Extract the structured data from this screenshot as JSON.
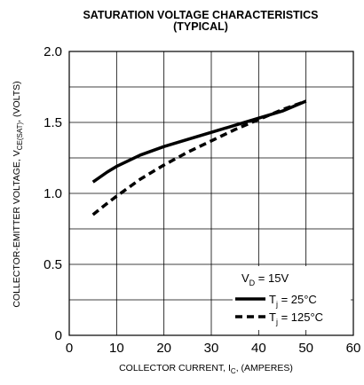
{
  "chart_data": {
    "type": "line",
    "title_line1": "SATURATION VOLTAGE CHARACTERISTICS",
    "title_line2": "(TYPICAL)",
    "xlabel": {
      "main": "COLLECTOR CURRENT, I",
      "sub": "C",
      "suffix": ", (AMPERES)"
    },
    "ylabel": {
      "main": "COLLECTOR-EMITTER VOLTAGE, V",
      "sub": "CE(SAT)",
      "suffix": ", (VOLTS)"
    },
    "xlim": [
      0,
      60
    ],
    "ylim": [
      0,
      2.0
    ],
    "x_ticks": [
      0,
      10,
      20,
      30,
      40,
      50,
      60
    ],
    "x_tick_labels": [
      "0",
      "10",
      "20",
      "30",
      "40",
      "50",
      "60"
    ],
    "y_ticks": [
      0,
      0.5,
      1.0,
      1.5,
      2.0
    ],
    "y_tick_labels": [
      "0",
      "0.5",
      "1.0",
      "1.5",
      "2.0"
    ],
    "grid": true,
    "grid_x_step": 10,
    "grid_y_step": 0.25,
    "legend_position": "bottom-right",
    "legend_header": {
      "main": "V",
      "sub": "D",
      "suffix": " = 15V"
    },
    "series": [
      {
        "name_main": "T",
        "name_sub": "j",
        "name_suffix": " = 25°C",
        "style": "solid",
        "color": "#000000",
        "x": [
          5,
          8,
          10,
          15,
          20,
          25,
          30,
          35,
          40,
          45,
          50
        ],
        "y": [
          1.08,
          1.15,
          1.19,
          1.27,
          1.33,
          1.38,
          1.43,
          1.48,
          1.53,
          1.58,
          1.65
        ]
      },
      {
        "name_main": "T",
        "name_sub": "j",
        "name_suffix": " = 125°C",
        "style": "dashed",
        "color": "#000000",
        "x": [
          5,
          8,
          10,
          15,
          20,
          25,
          30,
          35,
          40,
          45,
          50
        ],
        "y": [
          0.85,
          0.93,
          0.98,
          1.1,
          1.2,
          1.29,
          1.37,
          1.45,
          1.52,
          1.59,
          1.65
        ]
      }
    ]
  }
}
